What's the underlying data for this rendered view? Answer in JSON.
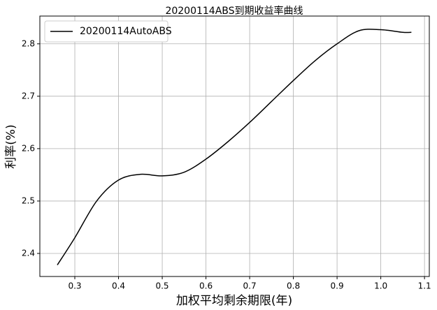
{
  "chart_data": {
    "type": "line",
    "title": "20200114ABS到期收益率曲线",
    "x_label": "加权平均剩余期限(年)",
    "y_label": "利率(%)",
    "x": [
      0.26,
      0.3,
      0.35,
      0.4,
      0.45,
      0.5,
      0.55,
      0.6,
      0.65,
      0.7,
      0.75,
      0.8,
      0.85,
      0.9,
      0.95,
      1.0,
      1.05,
      1.07
    ],
    "series": [
      {
        "name": "20200114AutoABS",
        "color": "#000000",
        "values": [
          2.378,
          2.43,
          2.5,
          2.54,
          2.551,
          2.548,
          2.555,
          2.58,
          2.613,
          2.65,
          2.69,
          2.73,
          2.768,
          2.8,
          2.825,
          2.827,
          2.822,
          2.822
        ]
      }
    ],
    "xlim": [
      0.22,
      1.111
    ],
    "ylim": [
      2.356,
      2.853
    ],
    "xticks": [
      0.3,
      0.4,
      0.5,
      0.6,
      0.7,
      0.8,
      0.9,
      {
        "value": 1,
        "label": "1.0"
      },
      1.1
    ],
    "yticks": [
      2.4,
      2.5,
      2.6,
      2.7,
      2.8
    ],
    "grid": true,
    "legend": "upper left"
  }
}
